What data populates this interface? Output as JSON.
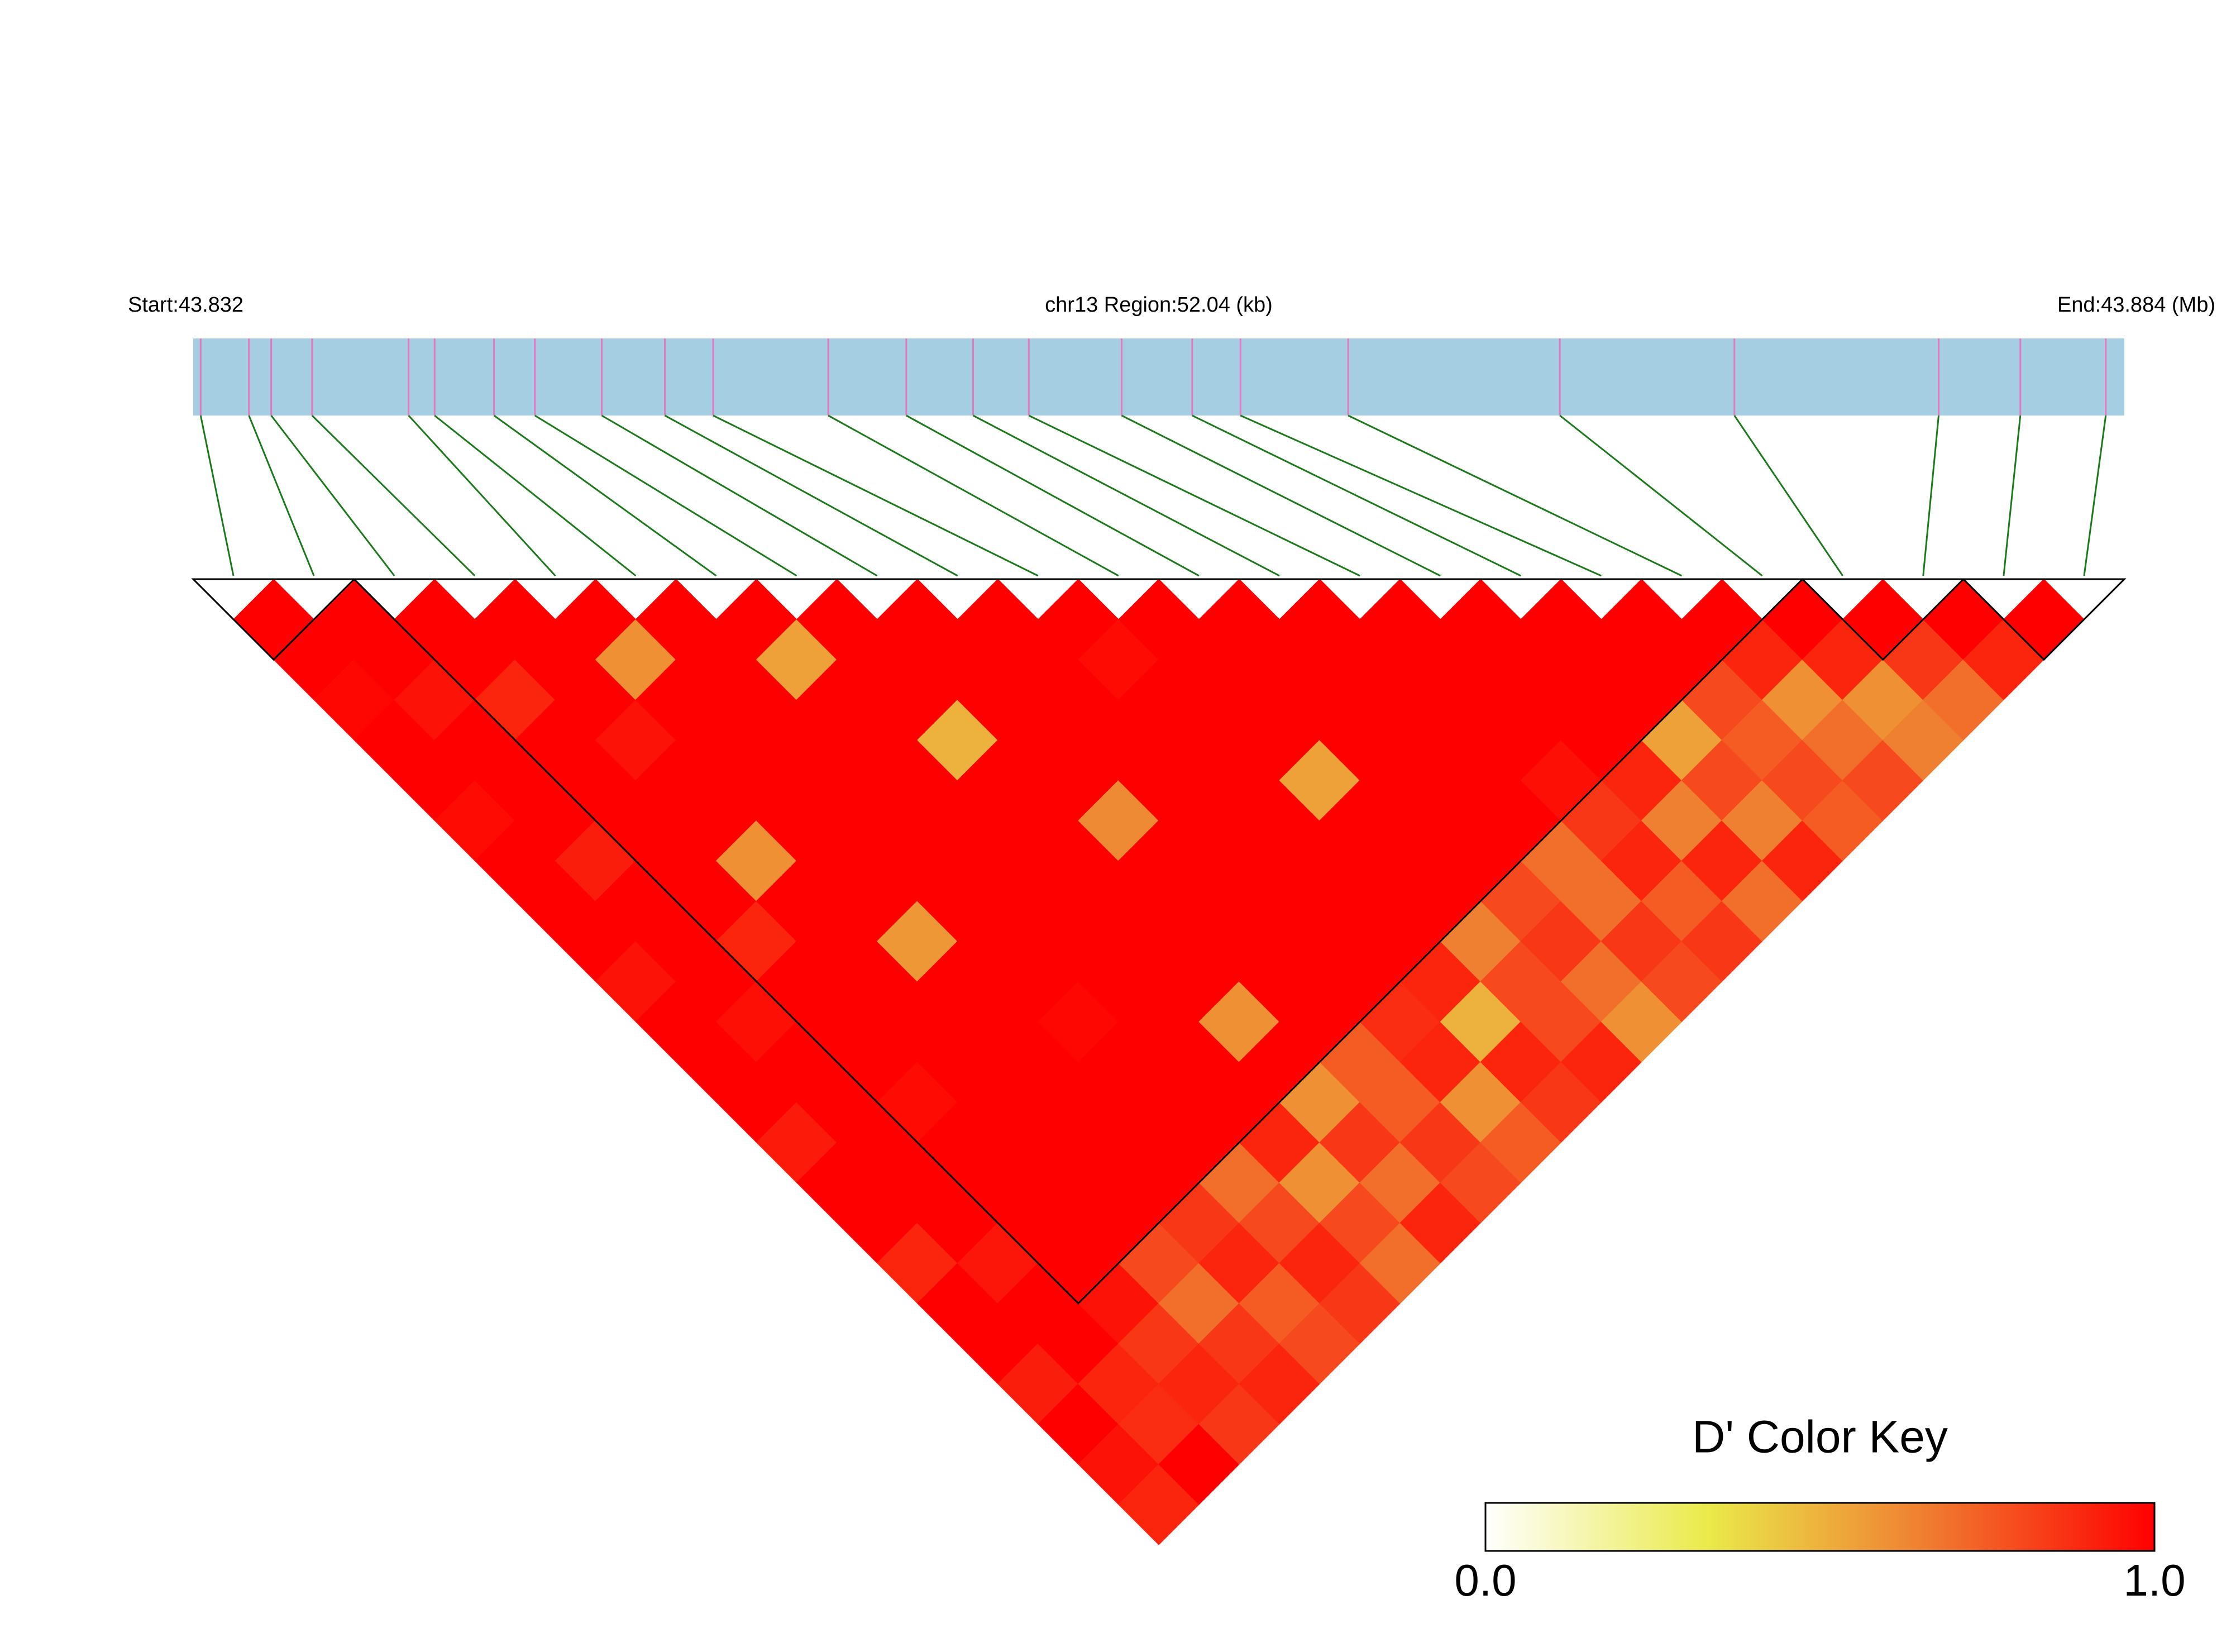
{
  "chart_data": {
    "type": "ld-heatmap",
    "start": {
      "value": 43.832,
      "label": "Start:43.832"
    },
    "end": {
      "value": 43.884,
      "label": "End:43.884 (Mb)"
    },
    "region_label": "chr13 Region:52.04 (kb)",
    "snp_positions": [
      43.8322,
      43.8335,
      43.8341,
      43.8352,
      43.8378,
      43.8385,
      43.8401,
      43.8412,
      43.843,
      43.8447,
      43.846,
      43.8491,
      43.8512,
      43.853,
      43.8545,
      43.857,
      43.8589,
      43.8602,
      43.8631,
      43.8688,
      43.8735,
      43.879,
      43.8812,
      43.8835
    ],
    "dprime": [
      [],
      [
        1
      ],
      [
        1,
        1
      ],
      [
        0.98,
        1,
        1
      ],
      [
        1,
        0.95,
        1,
        1
      ],
      [
        1,
        1,
        0.9,
        1,
        1
      ],
      [
        0.97,
        1,
        1,
        1,
        0.6,
        1
      ],
      [
        1,
        1,
        1,
        0.95,
        1,
        1,
        1
      ],
      [
        1,
        0.92,
        1,
        1,
        1,
        1,
        0.55,
        1
      ],
      [
        1,
        1,
        1,
        1,
        1,
        1,
        1,
        1,
        1
      ],
      [
        0.95,
        1,
        1,
        0.6,
        1,
        1,
        1,
        1,
        1,
        1
      ],
      [
        1,
        1,
        0.9,
        1,
        1,
        1,
        1,
        0.5,
        1,
        1,
        1
      ],
      [
        1,
        0.96,
        1,
        1,
        1,
        1,
        1,
        1,
        1,
        1,
        0.97,
        1
      ],
      [
        1,
        1,
        1,
        1,
        0.58,
        1,
        1,
        1,
        1,
        1,
        1,
        1,
        1
      ],
      [
        0.93,
        1,
        1,
        1,
        1,
        1,
        1,
        1,
        0.62,
        1,
        1,
        1,
        1,
        1
      ],
      [
        1,
        1,
        0.97,
        1,
        1,
        1,
        1,
        1,
        1,
        1,
        1,
        1,
        1,
        1,
        1
      ],
      [
        1,
        1,
        1,
        1,
        1,
        0.98,
        1,
        1,
        1,
        1,
        1,
        0.55,
        1,
        1,
        1,
        1
      ],
      [
        0.9,
        1,
        1,
        1,
        1,
        1,
        1,
        1,
        1,
        1,
        1,
        1,
        1,
        1,
        1,
        1,
        1
      ],
      [
        1,
        0.94,
        1,
        1,
        1,
        1,
        1,
        0.6,
        1,
        1,
        1,
        1,
        1,
        1,
        1,
        1,
        1,
        1
      ],
      [
        1,
        1,
        1,
        1,
        1,
        1,
        1,
        1,
        1,
        1,
        1,
        1,
        1,
        1,
        0.96,
        1,
        1,
        1,
        1
      ],
      [
        0.92,
        1,
        0.95,
        0.8,
        0.85,
        0.7,
        0.9,
        0.6,
        0.75,
        0.88,
        0.9,
        0.65,
        0.8,
        0.7,
        0.85,
        0.9,
        0.55,
        0.8,
        0.9,
        1
      ],
      [
        1,
        0.9,
        0.85,
        0.7,
        0.9,
        0.8,
        0.6,
        0.85,
        0.75,
        0.9,
        0.5,
        0.8,
        0.85,
        0.7,
        0.9,
        0.65,
        0.8,
        0.75,
        0.6,
        0.9,
        1
      ],
      [
        0.95,
        0.88,
        0.9,
        0.85,
        0.75,
        0.9,
        0.8,
        0.7,
        0.85,
        0.6,
        0.9,
        0.8,
        0.7,
        0.85,
        0.75,
        0.9,
        0.65,
        0.8,
        0.7,
        0.6,
        0.85,
        1
      ],
      [
        0.9,
        1,
        0.85,
        0.9,
        0.8,
        0.85,
        0.7,
        0.9,
        0.8,
        0.75,
        0.85,
        0.9,
        0.6,
        0.8,
        0.85,
        0.7,
        0.9,
        0.75,
        0.8,
        0.65,
        0.7,
        0.9,
        1
      ]
    ],
    "blocks": [
      [
        0,
        1
      ],
      [
        2,
        19
      ],
      [
        20,
        21
      ],
      [
        22,
        23
      ]
    ],
    "color_key": {
      "title": "D' Color Key",
      "min": {
        "value": 0,
        "label": "0.0"
      },
      "max": {
        "value": 1,
        "label": "1.0"
      },
      "colors": [
        "#ffffff",
        "#eaea4a",
        "#f07a30",
        "#ff0000"
      ]
    }
  }
}
